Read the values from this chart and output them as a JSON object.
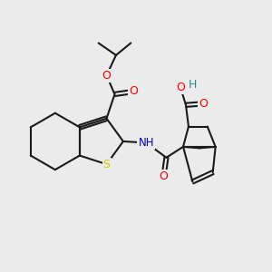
{
  "background_color": "#ebebeb",
  "bond_color": "#1a1a1a",
  "atom_colors": {
    "O": "#ff0000",
    "N": "#0000cd",
    "S": "#cccc00",
    "H": "#2e8b8b",
    "C": "#1a1a1a"
  },
  "figsize": [
    3.0,
    3.0
  ],
  "dpi": 100,
  "xlim": [
    0,
    10
  ],
  "ylim": [
    0,
    10
  ]
}
